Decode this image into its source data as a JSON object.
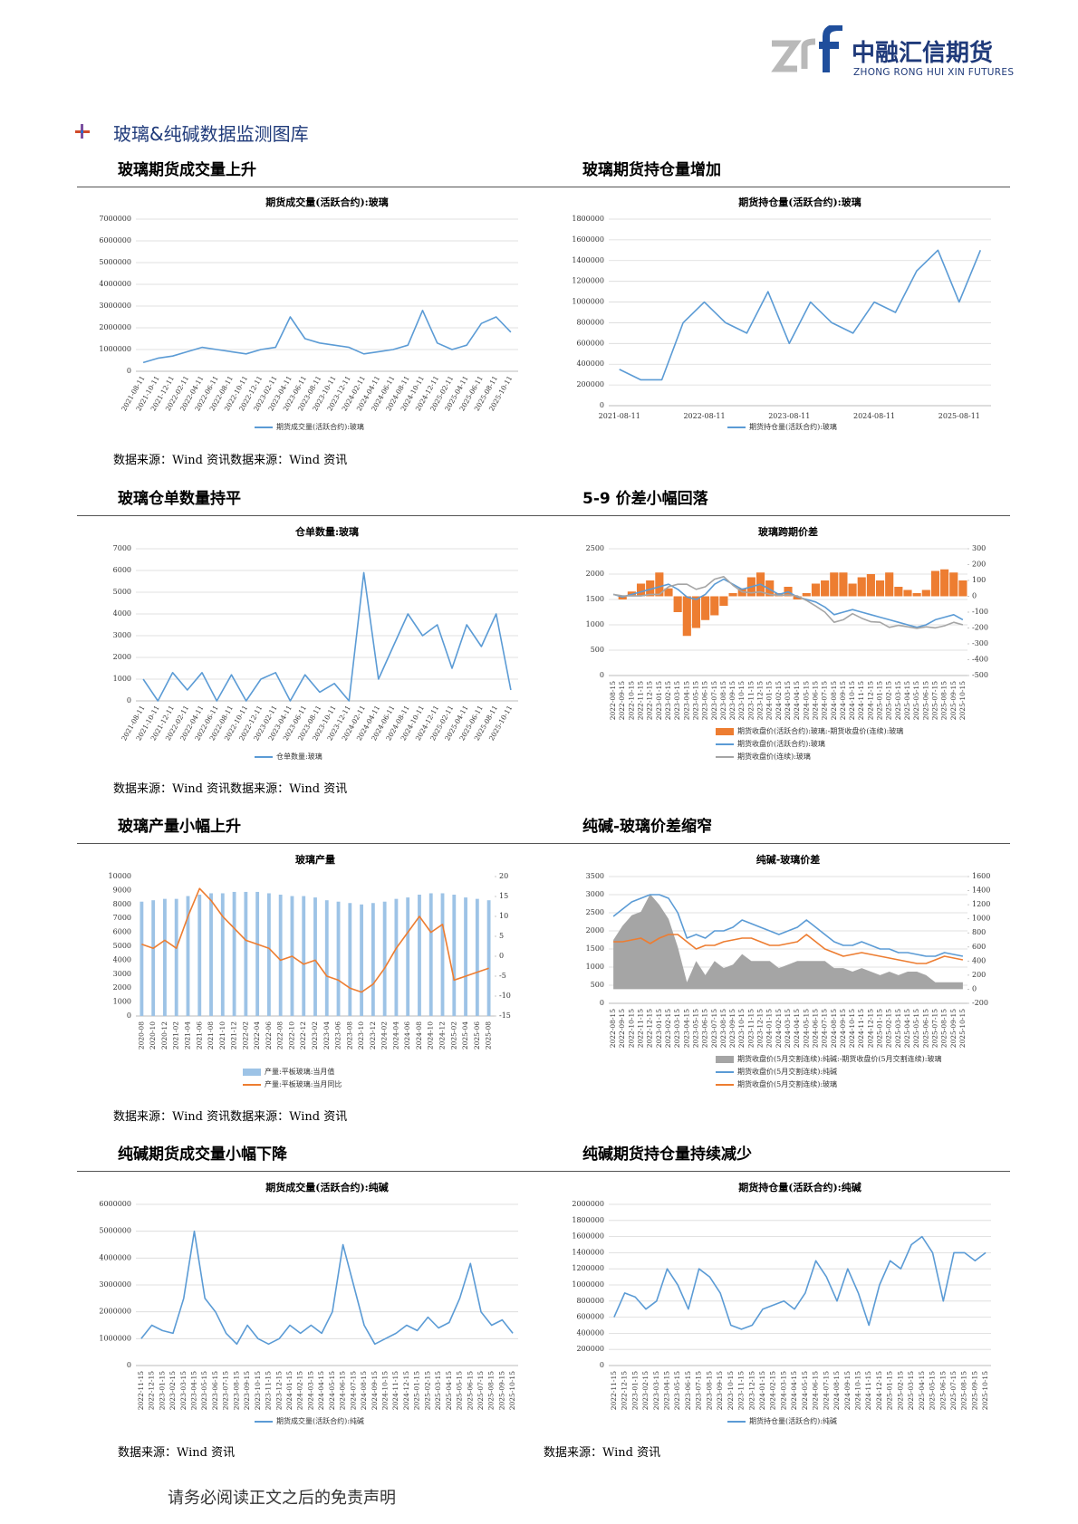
{
  "header": {
    "logo_text": "中融汇信期货",
    "logo_subtitle": "ZHONG RONG HUI XIN FUTURES"
  },
  "section_title": "玻璃&纯碱数据监测图库",
  "headings": [
    "玻璃期货成交量上升",
    "玻璃期货持仓量增加",
    "玻璃仓单数量持平",
    "5-9 价差小幅回落",
    "玻璃产量小幅上升",
    "纯碱-玻璃价差缩窄",
    "纯碱期货成交量小幅下降",
    "纯碱期货持仓量持续减少"
  ],
  "sources": [
    "数据来源：Wind 资讯数据来源：Wind 资讯",
    "数据来源：Wind 资讯数据来源：Wind 资讯",
    "数据来源：Wind 资讯数据来源：Wind 资讯",
    "数据来源：Wind 资讯",
    "数据来源：Wind 资讯"
  ],
  "footer": "请务必阅读正文之后的免责声明",
  "chart_data": [
    {
      "type": "line",
      "title": "期货成交量(活跃合约):玻璃",
      "grid": true,
      "xtick_rotation": -60,
      "categories": [
        "2021-08-11",
        "2021-10-11",
        "2021-12-11",
        "2022-02-11",
        "2022-04-11",
        "2022-06-11",
        "2022-08-11",
        "2022-10-11",
        "2022-12-11",
        "2023-02-11",
        "2023-04-11",
        "2023-06-11",
        "2023-08-11",
        "2023-10-11",
        "2023-12-11",
        "2024-02-11",
        "2024-04-11",
        "2024-06-11",
        "2024-08-11",
        "2024-10-11",
        "2024-12-11",
        "2025-02-11",
        "2025-04-11",
        "2025-06-11",
        "2025-08-11",
        "2025-10-11"
      ],
      "series": [
        {
          "name": "期货成交量(活跃合约):玻璃",
          "color": "#5b9bd5",
          "values": [
            400000,
            600000,
            700000,
            900000,
            1100000,
            1000000,
            900000,
            800000,
            1000000,
            1100000,
            2500000,
            1500000,
            1300000,
            1200000,
            1100000,
            800000,
            900000,
            1000000,
            1200000,
            2800000,
            1300000,
            1000000,
            1200000,
            2200000,
            2500000,
            1800000
          ]
        }
      ],
      "ylim": [
        0,
        7000000
      ],
      "yticks": [
        0,
        1000000,
        2000000,
        3000000,
        4000000,
        5000000,
        6000000,
        7000000
      ]
    },
    {
      "type": "line",
      "title": "期货持仓量(活跃合约):玻璃",
      "grid": true,
      "xtick_rotation": 0,
      "categories": [
        "2021-08-11",
        null,
        null,
        null,
        "2022-08-11",
        null,
        null,
        null,
        "2023-08-11",
        null,
        null,
        null,
        "2024-08-11",
        null,
        null,
        null,
        "2025-08-11",
        null
      ],
      "series": [
        {
          "name": "期货持仓量(活跃合约):玻璃",
          "color": "#5b9bd5",
          "values": [
            350000,
            250000,
            250000,
            800000,
            1000000,
            800000,
            700000,
            1100000,
            600000,
            1000000,
            800000,
            700000,
            1000000,
            900000,
            1300000,
            1500000,
            1000000,
            1500000
          ]
        }
      ],
      "ylim": [
        0,
        1800000
      ],
      "yticks": [
        0,
        200000,
        400000,
        600000,
        800000,
        1000000,
        1200000,
        1400000,
        1600000,
        1800000
      ]
    },
    {
      "type": "line",
      "title": "仓单数量:玻璃",
      "grid": true,
      "xtick_rotation": -60,
      "categories": [
        "2021-08-11",
        "2021-10-11",
        "2021-12-11",
        "2022-02-11",
        "2022-04-11",
        "2022-06-11",
        "2022-08-11",
        "2022-10-11",
        "2022-12-11",
        "2023-02-11",
        "2023-04-11",
        "2023-06-11",
        "2023-08-11",
        "2023-10-11",
        "2023-12-11",
        "2024-02-11",
        "2024-04-11",
        "2024-06-11",
        "2024-08-11",
        "2024-10-11",
        "2024-12-11",
        "2025-02-11",
        "2025-04-11",
        "2025-06-11",
        "2025-08-11",
        "2025-10-11"
      ],
      "series": [
        {
          "name": "仓单数量:玻璃",
          "color": "#5b9bd5",
          "values": [
            1000,
            0,
            1300,
            500,
            1300,
            0,
            1200,
            0,
            1000,
            1300,
            0,
            1200,
            400,
            800,
            0,
            5900,
            1000,
            2500,
            4000,
            3000,
            3500,
            1500,
            3500,
            2500,
            4000,
            500
          ]
        }
      ],
      "ylim": [
        0,
        7000
      ],
      "yticks": [
        0,
        1000,
        2000,
        3000,
        4000,
        5000,
        6000,
        7000
      ]
    },
    {
      "type": "combo",
      "title": "玻璃跨期价差",
      "grid": true,
      "xtick_rotation": -90,
      "categories": [
        "2022-08-15",
        "2022-09-15",
        "2022-10-15",
        "2022-11-15",
        "2022-12-15",
        "2023-01-15",
        "2023-02-15",
        "2023-03-15",
        "2023-04-15",
        "2023-05-15",
        "2023-06-15",
        "2023-07-15",
        "2023-08-15",
        "2023-09-15",
        "2023-10-15",
        "2023-11-15",
        "2023-12-15",
        "2024-01-15",
        "2024-02-15",
        "2024-03-15",
        "2024-04-15",
        "2024-05-15",
        "2024-06-15",
        "2024-07-15",
        "2024-08-15",
        "2024-09-15",
        "2024-10-15",
        "2024-11-15",
        "2024-12-15",
        "2025-01-15",
        "2025-02-15",
        "2025-03-15",
        "2025-04-15",
        "2025-05-15",
        "2025-06-15",
        "2025-07-15",
        "2025-08-15",
        "2025-09-15",
        "2025-10-15"
      ],
      "series": [
        {
          "name": "期货收盘价(活跃合约):玻璃:-期货收盘价(连续):玻璃",
          "type": "bar",
          "axis": "y2",
          "color": "#ed7d31",
          "values": [
            0,
            -20,
            30,
            80,
            100,
            150,
            50,
            -100,
            -250,
            -200,
            -150,
            -120,
            -60,
            20,
            50,
            120,
            150,
            100,
            20,
            60,
            -20,
            20,
            80,
            100,
            150,
            150,
            80,
            120,
            140,
            100,
            150,
            60,
            40,
            20,
            40,
            160,
            170,
            150,
            100
          ]
        },
        {
          "name": "期货收盘价(活跃合约):玻璃",
          "type": "line",
          "color": "#5b9bd5",
          "values": [
            1600,
            1550,
            1600,
            1650,
            1700,
            1750,
            1800,
            1700,
            1550,
            1500,
            1600,
            1800,
            1900,
            1800,
            1700,
            1750,
            1800,
            1700,
            1600,
            1650,
            1550,
            1500,
            1450,
            1350,
            1200,
            1250,
            1300,
            1250,
            1200,
            1150,
            1100,
            1050,
            1000,
            950,
            1000,
            1100,
            1150,
            1200,
            1100
          ]
        },
        {
          "name": "期货收盘价(连续):玻璃",
          "type": "line",
          "color": "#a5a5a5",
          "values": [
            1600,
            1570,
            1570,
            1570,
            1600,
            1600,
            1750,
            1800,
            1800,
            1700,
            1750,
            1900,
            1950,
            1780,
            1650,
            1630,
            1650,
            1600,
            1580,
            1590,
            1570,
            1480,
            1370,
            1250,
            1050,
            1100,
            1220,
            1130,
            1060,
            1050,
            950,
            990,
            960,
            930,
            960,
            940,
            980,
            1050,
            1000
          ]
        }
      ],
      "ylim": [
        0,
        2500
      ],
      "yticks": [
        0,
        500,
        1000,
        1500,
        2000,
        2500
      ],
      "y2lim": [
        -500,
        300
      ],
      "y2ticks": [
        -500,
        -400,
        -300,
        -200,
        -100,
        0,
        100,
        200,
        300
      ]
    },
    {
      "type": "combo",
      "title": "玻璃产量",
      "grid": false,
      "xtick_rotation": -90,
      "categories": [
        "2020-08",
        "2020-10",
        "2020-12",
        "2021-02",
        "2021-04",
        "2021-06",
        "2021-08",
        "2021-10",
        "2021-12",
        "2022-02",
        "2022-04",
        "2022-06",
        "2022-08",
        "2022-10",
        "2022-12",
        "2023-02",
        "2023-04",
        "2023-06",
        "2023-08",
        "2023-10",
        "2023-12",
        "2024-02",
        "2024-04",
        "2024-06",
        "2024-08",
        "2024-10",
        "2024-12",
        "2025-02",
        "2025-04",
        "2025-06",
        "2025-08"
      ],
      "series": [
        {
          "name": "产量:平板玻璃:当月值",
          "type": "bar",
          "color": "#9dc3e6",
          "values": [
            8200,
            8300,
            8400,
            8400,
            8600,
            8700,
            8800,
            8800,
            8900,
            8900,
            8900,
            8800,
            8700,
            8600,
            8600,
            8500,
            8300,
            8200,
            8100,
            8000,
            8100,
            8200,
            8400,
            8500,
            8700,
            8800,
            8800,
            8700,
            8500,
            8400,
            8300
          ]
        },
        {
          "name": "产量:平板玻璃:当月同比",
          "type": "line",
          "axis": "y2",
          "color": "#ed7d31",
          "values": [
            3,
            2,
            4,
            2,
            10,
            17,
            14,
            10,
            7,
            4,
            3,
            2,
            -1,
            0,
            -2,
            -1,
            -5,
            -6,
            -8,
            -9,
            -7,
            -3,
            2,
            6,
            10,
            6,
            8,
            -6,
            -5,
            -4,
            -3
          ]
        }
      ],
      "ylim": [
        0,
        10000
      ],
      "yticks": [
        0,
        1000,
        2000,
        3000,
        4000,
        5000,
        6000,
        7000,
        8000,
        9000,
        10000
      ],
      "y2lim": [
        -15,
        20
      ],
      "y2ticks": [
        -15,
        -10,
        -5,
        0,
        5,
        10,
        15,
        20
      ]
    },
    {
      "type": "combo",
      "title": "纯碱-玻璃价差",
      "grid": true,
      "xtick_rotation": -90,
      "categories": [
        "2022-08-15",
        "2022-09-15",
        "2022-10-15",
        "2022-11-15",
        "2022-12-15",
        "2023-01-15",
        "2023-02-15",
        "2023-03-15",
        "2023-04-15",
        "2023-05-15",
        "2023-06-15",
        "2023-07-15",
        "2023-08-15",
        "2023-09-15",
        "2023-10-15",
        "2023-11-15",
        "2023-12-15",
        "2024-01-15",
        "2024-02-15",
        "2024-03-15",
        "2024-04-15",
        "2024-05-15",
        "2024-06-15",
        "2024-07-15",
        "2024-08-15",
        "2024-09-15",
        "2024-10-15",
        "2024-11-15",
        "2024-12-15",
        "2025-01-15",
        "2025-02-15",
        "2025-03-15",
        "2025-04-15",
        "2025-05-15",
        "2025-06-15",
        "2025-07-15",
        "2025-08-15",
        "2025-09-15",
        "2025-10-15"
      ],
      "series": [
        {
          "name": "期货收盘价(5月交割连续):纯碱:-期货收盘价(5月交割连续):玻璃",
          "type": "area",
          "axis": "y2",
          "color": "#a5a5a5",
          "values": [
            700,
            900,
            1050,
            1100,
            1350,
            1200,
            1000,
            600,
            100,
            400,
            200,
            400,
            300,
            350,
            500,
            400,
            400,
            400,
            300,
            350,
            400,
            400,
            400,
            400,
            300,
            300,
            250,
            300,
            250,
            200,
            250,
            200,
            250,
            250,
            200,
            100,
            100,
            100,
            100
          ]
        },
        {
          "name": "期货收盘价(5月交割连续):纯碱",
          "type": "line",
          "color": "#5b9bd5",
          "values": [
            2400,
            2600,
            2800,
            2900,
            3000,
            3000,
            2900,
            2500,
            1800,
            1900,
            1800,
            2000,
            2000,
            2100,
            2300,
            2200,
            2100,
            2000,
            1900,
            2000,
            2100,
            2300,
            2100,
            1900,
            1700,
            1600,
            1600,
            1700,
            1600,
            1500,
            1500,
            1400,
            1400,
            1350,
            1300,
            1300,
            1400,
            1350,
            1300
          ]
        },
        {
          "name": "期货收盘价(5月交割连续):玻璃",
          "type": "line",
          "color": "#ed7d31",
          "values": [
            1700,
            1700,
            1750,
            1800,
            1650,
            1800,
            1900,
            1900,
            1700,
            1500,
            1600,
            1600,
            1700,
            1750,
            1800,
            1800,
            1700,
            1600,
            1600,
            1650,
            1700,
            1900,
            1700,
            1500,
            1400,
            1300,
            1350,
            1400,
            1350,
            1300,
            1250,
            1200,
            1150,
            1100,
            1100,
            1200,
            1300,
            1250,
            1200
          ]
        }
      ],
      "ylim": [
        0,
        3500
      ],
      "yticks": [
        0,
        500,
        1000,
        1500,
        2000,
        2500,
        3000,
        3500
      ],
      "y2lim": [
        -200,
        1600
      ],
      "y2ticks": [
        -200,
        0,
        200,
        400,
        600,
        800,
        1000,
        1200,
        1400,
        1600
      ]
    },
    {
      "type": "line",
      "title": "期货成交量(活跃合约):纯碱",
      "grid": true,
      "xtick_rotation": -90,
      "categories": [
        "2022-11-15",
        "2022-12-15",
        "2023-01-15",
        "2023-02-15",
        "2023-03-15",
        "2023-04-15",
        "2023-05-15",
        "2023-06-15",
        "2023-07-15",
        "2023-08-15",
        "2023-09-15",
        "2023-10-15",
        "2023-11-15",
        "2023-12-15",
        "2024-01-15",
        "2024-02-15",
        "2024-03-15",
        "2024-04-15",
        "2024-05-15",
        "2024-06-15",
        "2024-07-15",
        "2024-08-15",
        "2024-09-15",
        "2024-10-15",
        "2024-11-15",
        "2024-12-15",
        "2025-01-15",
        "2025-02-15",
        "2025-03-15",
        "2025-04-15",
        "2025-05-15",
        "2025-06-15",
        "2025-07-15",
        "2025-08-15",
        "2025-09-15",
        "2025-10-15"
      ],
      "series": [
        {
          "name": "期货成交量(活跃合约):纯碱",
          "color": "#5b9bd5",
          "values": [
            1000000,
            1500000,
            1300000,
            1200000,
            2500000,
            5000000,
            2500000,
            2000000,
            1200000,
            800000,
            1500000,
            1000000,
            800000,
            1000000,
            1500000,
            1200000,
            1500000,
            1200000,
            2000000,
            4500000,
            3000000,
            1500000,
            800000,
            1000000,
            1200000,
            1500000,
            1300000,
            1800000,
            1400000,
            1600000,
            2500000,
            3800000,
            2000000,
            1500000,
            1700000,
            1200000
          ]
        }
      ],
      "ylim": [
        0,
        6000000
      ],
      "yticks": [
        0,
        1000000,
        2000000,
        3000000,
        4000000,
        5000000,
        6000000
      ]
    },
    {
      "type": "line",
      "title": "期货持仓量(活跃合约):纯碱",
      "grid": true,
      "xtick_rotation": -90,
      "categories": [
        "2022-11-15",
        "2022-12-15",
        "2023-01-15",
        "2023-02-15",
        "2023-03-15",
        "2023-04-15",
        "2023-05-15",
        "2023-06-15",
        "2023-07-15",
        "2023-08-15",
        "2023-09-15",
        "2023-10-15",
        "2023-11-15",
        "2023-12-15",
        "2024-01-15",
        "2024-02-15",
        "2024-03-15",
        "2024-04-15",
        "2024-05-15",
        "2024-06-15",
        "2024-07-15",
        "2024-08-15",
        "2024-09-15",
        "2024-10-15",
        "2024-11-15",
        "2024-12-15",
        "2025-01-15",
        "2025-02-15",
        "2025-03-15",
        "2025-04-15",
        "2025-05-15",
        "2025-06-15",
        "2025-07-15",
        "2025-08-15",
        "2025-09-15",
        "2025-10-15"
      ],
      "series": [
        {
          "name": "期货持仓量(活跃合约):纯碱",
          "color": "#5b9bd5",
          "values": [
            600000,
            900000,
            850000,
            700000,
            800000,
            1200000,
            1000000,
            700000,
            1200000,
            1100000,
            900000,
            500000,
            450000,
            500000,
            700000,
            750000,
            800000,
            700000,
            900000,
            1300000,
            1100000,
            800000,
            1200000,
            900000,
            500000,
            1000000,
            1300000,
            1200000,
            1500000,
            1600000,
            1400000,
            800000,
            1400000,
            1400000,
            1300000,
            1400000
          ]
        }
      ],
      "ylim": [
        0,
        2000000
      ],
      "yticks": [
        0,
        200000,
        400000,
        600000,
        800000,
        1000000,
        1200000,
        1400000,
        1600000,
        1800000,
        2000000
      ]
    }
  ]
}
